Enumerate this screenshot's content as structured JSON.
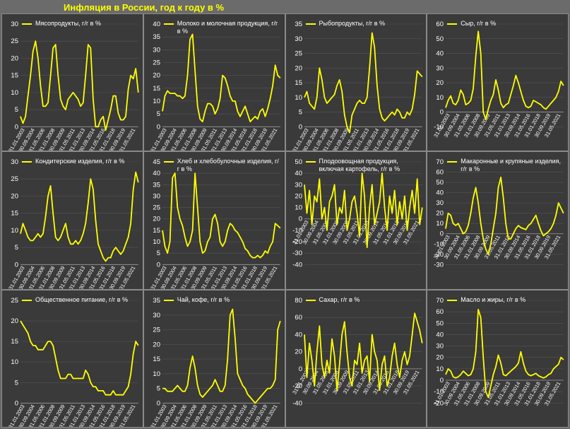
{
  "title": "Инфляция в России, год к году в %",
  "colors": {
    "line": "#ffff00",
    "panel_bg": "#3a3a3a",
    "page_bg": "#6b6b6b",
    "text": "#ffffff",
    "grid": "#555555"
  },
  "x_tick_labels": [
    "31.01.2003",
    "30.09.2004",
    "31.05.2006",
    "31.01.2008",
    "30.09.2009",
    "31.05.2011",
    "31.01.2013",
    "30.09.2014",
    "31.05.2016",
    "31.01.2018",
    "30.09.2019",
    "31.05.2021"
  ],
  "chart_data": [
    {
      "type": "line",
      "title": "Мясопродукты, г/г в %",
      "ylim": [
        0,
        30
      ],
      "yticks": [
        0,
        5,
        10,
        15,
        20,
        25,
        30
      ],
      "series": [
        {
          "name": "Мясопродукты, г/г в %",
          "values": [
            3,
            1,
            3,
            9,
            15,
            22,
            25,
            20,
            12,
            6,
            6,
            7,
            15,
            23,
            24,
            15,
            8,
            6,
            5,
            8,
            9,
            10,
            9,
            8,
            6,
            7,
            15,
            24,
            23,
            8,
            0,
            0,
            2,
            3,
            -1,
            2,
            5,
            9,
            9,
            4,
            2,
            2,
            3,
            11,
            15,
            14,
            17,
            10
          ]
        }
      ]
    },
    {
      "type": "line",
      "title": "Молоко и молочная продукция, г/г в %",
      "ylim": [
        0,
        40
      ],
      "yticks": [
        0,
        5,
        10,
        15,
        20,
        25,
        30,
        35,
        40
      ],
      "series": [
        {
          "name": "Молоко и молочная продукция, г/г в %",
          "values": [
            6,
            12,
            14,
            13,
            13,
            13,
            12,
            12,
            11,
            12,
            20,
            34,
            36,
            22,
            8,
            3,
            2,
            6,
            9,
            9,
            8,
            5,
            7,
            11,
            20,
            19,
            16,
            12,
            10,
            10,
            6,
            4,
            6,
            8,
            5,
            2,
            3,
            4,
            3,
            6,
            7,
            4,
            7,
            11,
            16,
            24,
            20,
            19
          ]
        }
      ]
    },
    {
      "type": "line",
      "title": "Рыбопродукты, г/г в %",
      "ylim": [
        0,
        35
      ],
      "yticks": [
        0,
        5,
        10,
        15,
        20,
        25,
        30,
        35
      ],
      "series": [
        {
          "name": "Рыбопродукты, г/г в %",
          "values": [
            10,
            12,
            8,
            7,
            6,
            10,
            20,
            16,
            10,
            8,
            9,
            10,
            11,
            14,
            16,
            12,
            4,
            0,
            -2,
            4,
            6,
            8,
            9,
            8,
            8,
            10,
            20,
            32,
            27,
            14,
            6,
            3,
            2,
            3,
            4,
            5,
            4,
            6,
            5,
            3,
            3,
            5,
            4,
            6,
            11,
            19,
            18,
            17
          ]
        }
      ]
    },
    {
      "type": "line",
      "title": "Сыр, г/г в %",
      "ylim": [
        -10,
        60
      ],
      "yticks": [
        -10,
        0,
        10,
        20,
        30,
        40,
        50,
        60
      ],
      "series": [
        {
          "name": "Сыр, г/г в %",
          "values": [
            3,
            8,
            11,
            6,
            5,
            8,
            15,
            12,
            5,
            6,
            8,
            16,
            38,
            55,
            40,
            0,
            -5,
            2,
            8,
            12,
            22,
            15,
            6,
            3,
            5,
            6,
            12,
            18,
            25,
            20,
            14,
            8,
            4,
            3,
            4,
            8,
            7,
            6,
            5,
            3,
            2,
            4,
            6,
            8,
            10,
            14,
            21,
            18
          ]
        }
      ]
    },
    {
      "type": "line",
      "title": "Кондитерские изделия, г/г в %",
      "ylim": [
        0,
        30
      ],
      "yticks": [
        0,
        5,
        10,
        15,
        20,
        25,
        30
      ],
      "series": [
        {
          "name": "Кондитерские изделия, г/г в %",
          "values": [
            9,
            12,
            10,
            8,
            7,
            7,
            8,
            9,
            8,
            9,
            14,
            20,
            23,
            15,
            8,
            7,
            8,
            10,
            12,
            8,
            6,
            6,
            7,
            6,
            7,
            9,
            12,
            18,
            25,
            22,
            13,
            6,
            4,
            2,
            1,
            2,
            2,
            4,
            5,
            4,
            3,
            4,
            6,
            8,
            12,
            22,
            27,
            24
          ]
        }
      ]
    },
    {
      "type": "line",
      "title": "Хлеб и хлебобулочные изделия, г/г в %",
      "ylim": [
        0,
        45
      ],
      "yticks": [
        0,
        5,
        10,
        15,
        20,
        25,
        30,
        35,
        40,
        45
      ],
      "series": [
        {
          "name": "Хлеб и хлебобулочные изделия, г/г в %",
          "values": [
            15,
            8,
            5,
            10,
            38,
            40,
            25,
            20,
            17,
            12,
            8,
            10,
            15,
            40,
            25,
            10,
            5,
            6,
            10,
            12,
            20,
            22,
            18,
            10,
            8,
            10,
            15,
            18,
            17,
            15,
            14,
            12,
            10,
            7,
            6,
            4,
            3,
            3,
            4,
            3,
            4,
            6,
            5,
            8,
            10,
            18,
            17,
            16
          ]
        }
      ]
    },
    {
      "type": "line",
      "title": "Плодоовощная продукция, включая картофель, г/г в %",
      "ylim": [
        -40,
        50
      ],
      "yticks": [
        -40,
        -30,
        -20,
        -10,
        0,
        10,
        20,
        30,
        40,
        50
      ],
      "series": [
        {
          "name": "Плодоовощная продукция, включая картофель, г/г в %",
          "values": [
            30,
            5,
            25,
            -5,
            20,
            15,
            35,
            0,
            10,
            -10,
            15,
            20,
            30,
            -5,
            10,
            5,
            25,
            -10,
            0,
            15,
            20,
            5,
            -15,
            40,
            20,
            -25,
            10,
            30,
            -5,
            5,
            15,
            40,
            10,
            -10,
            20,
            5,
            25,
            -5,
            15,
            0,
            20,
            -10,
            10,
            25,
            5,
            35,
            -5,
            10
          ]
        }
      ]
    },
    {
      "type": "line",
      "title": "Макаронные и крупяные изделия, г/г в %",
      "ylim": [
        -30,
        70
      ],
      "yticks": [
        -30,
        -20,
        -10,
        0,
        10,
        20,
        30,
        40,
        50,
        60,
        70
      ],
      "series": [
        {
          "name": "Макаронные и крупяные изделия, г/г в %",
          "values": [
            5,
            20,
            18,
            10,
            8,
            10,
            5,
            0,
            2,
            8,
            20,
            35,
            45,
            30,
            10,
            -5,
            -15,
            -20,
            -10,
            5,
            20,
            45,
            55,
            35,
            10,
            -5,
            -5,
            0,
            5,
            8,
            6,
            5,
            4,
            8,
            10,
            14,
            18,
            10,
            3,
            -2,
            0,
            2,
            5,
            10,
            18,
            30,
            25,
            20
          ]
        }
      ]
    },
    {
      "type": "line",
      "title": "Общественное питание, г/г в %",
      "ylim": [
        0,
        25
      ],
      "yticks": [
        0,
        5,
        10,
        15,
        20,
        25
      ],
      "series": [
        {
          "name": "Общественное питание, г/г в %",
          "values": [
            20,
            19,
            18,
            17,
            15,
            14,
            14,
            13,
            13,
            13,
            14,
            15,
            15,
            14,
            11,
            8,
            6,
            6,
            6,
            7,
            7,
            6,
            6,
            6,
            6,
            6,
            8,
            7,
            5,
            4,
            4,
            3,
            3,
            3,
            2,
            2,
            2,
            3,
            2,
            2,
            2,
            2,
            3,
            4,
            7,
            12,
            15,
            14
          ]
        }
      ]
    },
    {
      "type": "line",
      "title": "Чай, кофе, г/г в %",
      "ylim": [
        0,
        35
      ],
      "yticks": [
        0,
        5,
        10,
        15,
        20,
        25,
        30,
        35
      ],
      "series": [
        {
          "name": "Чай, кофе, г/г в %",
          "values": [
            5,
            5,
            4,
            4,
            4,
            5,
            6,
            5,
            4,
            4,
            6,
            12,
            16,
            12,
            6,
            3,
            2,
            3,
            4,
            5,
            6,
            8,
            6,
            4,
            4,
            6,
            15,
            30,
            32,
            22,
            10,
            8,
            6,
            5,
            3,
            2,
            1,
            0,
            1,
            2,
            3,
            4,
            5,
            5,
            6,
            8,
            25,
            28
          ]
        }
      ]
    },
    {
      "type": "line",
      "title": "Сахар, г/г в %",
      "ylim": [
        -40,
        80
      ],
      "yticks": [
        -40,
        -20,
        0,
        20,
        40,
        60,
        80
      ],
      "series": [
        {
          "name": "Сахар, г/г в %",
          "values": [
            40,
            -10,
            30,
            10,
            -20,
            20,
            50,
            5,
            -10,
            10,
            -5,
            35,
            15,
            -25,
            5,
            40,
            55,
            20,
            -10,
            -20,
            10,
            5,
            30,
            -5,
            10,
            15,
            -15,
            40,
            20,
            10,
            -25,
            5,
            15,
            -20,
            -10,
            15,
            30,
            5,
            -10,
            10,
            20,
            5,
            15,
            40,
            65,
            55,
            45,
            30
          ]
        }
      ]
    },
    {
      "type": "line",
      "title": "Масло и жиры, г/г в %",
      "ylim": [
        -20,
        70
      ],
      "yticks": [
        -20,
        -10,
        0,
        10,
        20,
        30,
        40,
        50,
        60,
        70
      ],
      "series": [
        {
          "name": "Масло и жиры, г/г в %",
          "values": [
            5,
            10,
            8,
            3,
            2,
            3,
            5,
            8,
            6,
            4,
            5,
            10,
            25,
            62,
            55,
            20,
            -10,
            -15,
            -5,
            5,
            12,
            22,
            15,
            5,
            4,
            6,
            8,
            10,
            12,
            15,
            25,
            15,
            8,
            5,
            4,
            5,
            6,
            4,
            3,
            2,
            3,
            5,
            6,
            10,
            12,
            14,
            20,
            18
          ]
        }
      ]
    }
  ]
}
